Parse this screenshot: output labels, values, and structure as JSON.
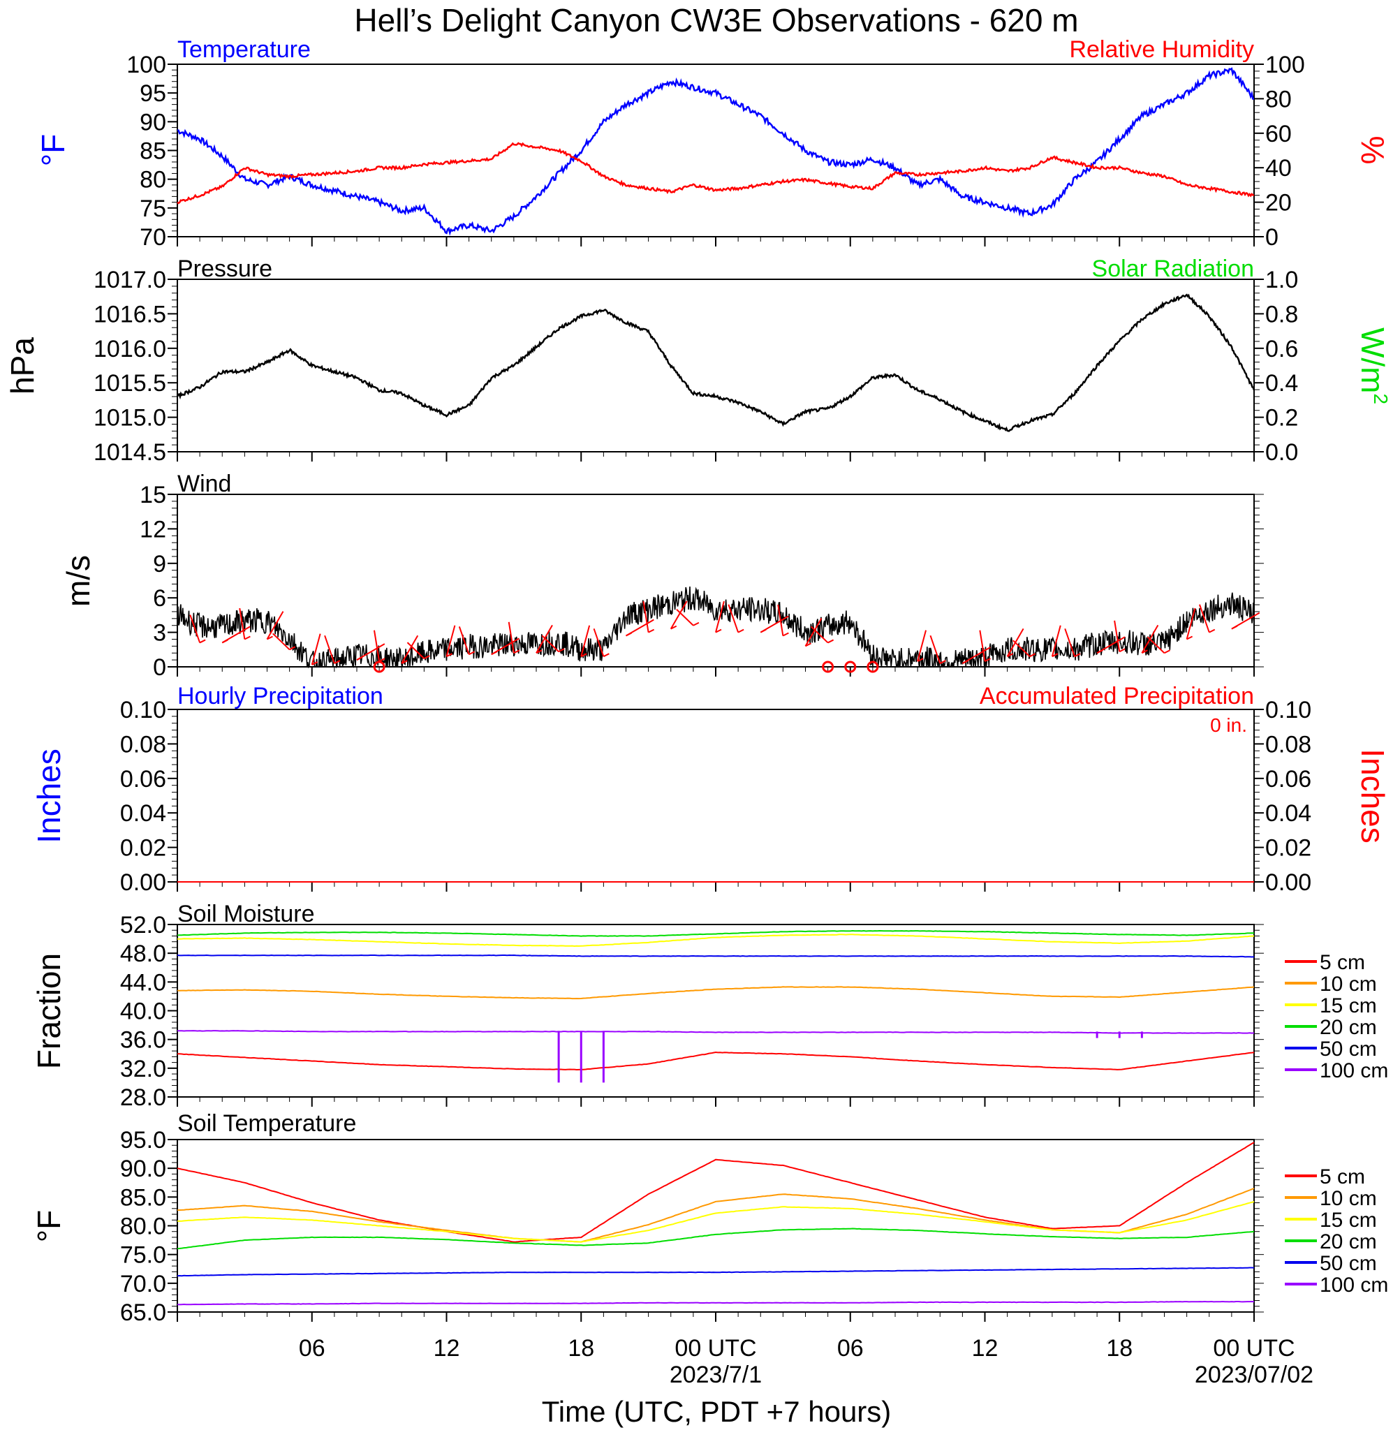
{
  "figure": {
    "title": "Hell’s Delight Canyon CW3E Observations - 620 m",
    "xlabel": "Time (UTC, PDT +7 hours)",
    "x_ticks": [
      "06",
      "12",
      "18",
      "00 UTC",
      "06",
      "12",
      "18",
      "00 UTC"
    ],
    "x_dates": [
      "2023/7/1",
      "2023/07/02"
    ]
  },
  "colors": {
    "blue": "#0000ff",
    "red": "#ff0000",
    "green": "#00dd00",
    "black": "#000000",
    "orange": "#ff9900",
    "yellow": "#ffff00",
    "purple": "#9900ff",
    "soil_blue": "#0000ee"
  },
  "panels": {
    "temp_rh": {
      "title_left": "Temperature",
      "title_right": "Relative Humidity",
      "ylabel_left": "°F",
      "ylabel_right": "%",
      "yticks_left": [
        "100",
        "95",
        "90",
        "85",
        "80",
        "75",
        "70"
      ],
      "yticks_right": [
        "100",
        "80",
        "60",
        "40",
        "20",
        "0"
      ]
    },
    "pressure": {
      "title_left": "Pressure",
      "title_right": "Solar Radiation",
      "ylabel_left": "hPa",
      "ylabel_right": "W/m",
      "ylabel_right_sup": "2",
      "yticks_left": [
        "1017.0",
        "1016.5",
        "1016.0",
        "1015.5",
        "1015.0",
        "1014.5"
      ],
      "yticks_right": [
        "1.0",
        "0.8",
        "0.6",
        "0.4",
        "0.2",
        "0.0"
      ]
    },
    "wind": {
      "title_left": "Wind",
      "ylabel_left": "m/s",
      "yticks_left": [
        "15",
        "12",
        "9",
        "6",
        "3",
        "0"
      ]
    },
    "precip": {
      "title_left": "Hourly Precipitation",
      "title_right": "Accumulated Precipitation",
      "total": "0 in.",
      "ylabel_left": "Inches",
      "ylabel_right": "Inches",
      "yticks_left": [
        "0.10",
        "0.08",
        "0.06",
        "0.04",
        "0.02",
        "0.00"
      ],
      "yticks_right": [
        "0.10",
        "0.08",
        "0.06",
        "0.04",
        "0.02",
        "0.00"
      ]
    },
    "soil_moisture": {
      "title_left": "Soil Moisture",
      "ylabel_left": "Fraction",
      "yticks_left": [
        "52.0",
        "48.0",
        "44.0",
        "40.0",
        "36.0",
        "32.0",
        "28.0"
      ],
      "legend": [
        "5 cm",
        "10 cm",
        "15 cm",
        "20 cm",
        "50 cm",
        "100 cm"
      ]
    },
    "soil_temp": {
      "title_left": "Soil Temperature",
      "ylabel_left": "°F",
      "yticks_left": [
        "95.0",
        "90.0",
        "85.0",
        "80.0",
        "75.0",
        "70.0",
        "65.0"
      ],
      "legend": [
        "5 cm",
        "10 cm",
        "15 cm",
        "20 cm",
        "50 cm",
        "100 cm"
      ]
    }
  },
  "chart_data": [
    {
      "type": "line",
      "title": "Temperature",
      "x_hours": [
        0,
        1,
        2,
        3,
        4,
        5,
        6,
        7,
        8,
        9,
        10,
        11,
        12,
        13,
        14,
        15,
        16,
        17,
        18,
        19,
        20,
        21,
        22,
        23,
        24,
        25,
        26,
        27,
        28,
        29,
        30,
        31,
        32,
        33,
        34,
        35,
        36,
        37,
        38,
        39,
        40,
        41,
        42,
        43,
        44,
        45,
        46,
        47,
        48
      ],
      "ylim": [
        70,
        100
      ],
      "series": [
        {
          "name": "Temperature",
          "color": "blue",
          "axis": "left",
          "values": [
            88.5,
            87,
            84,
            80,
            79,
            80.5,
            79,
            78,
            77,
            76,
            74.5,
            75,
            71,
            72,
            71,
            73.5,
            77,
            81,
            85,
            90,
            93,
            95,
            97,
            96,
            95,
            93,
            91,
            88,
            85,
            83,
            82.5,
            83.5,
            82,
            79,
            80,
            77,
            76,
            75,
            74,
            75.5,
            80,
            83,
            87,
            91,
            93,
            95,
            98,
            99,
            94
          ]
        },
        {
          "name": "Relative Humidity",
          "color": "red",
          "axis": "right",
          "values": [
            20,
            24,
            29,
            40,
            36,
            35,
            36,
            37,
            38,
            40,
            40,
            42,
            43,
            44,
            45,
            54,
            52,
            50,
            44,
            35,
            30,
            28,
            26,
            30,
            27,
            28,
            30,
            32,
            33,
            31,
            29,
            28,
            37,
            36,
            37,
            38,
            40,
            38,
            40,
            46,
            43,
            40,
            40,
            37,
            35,
            30,
            28,
            26,
            24
          ]
        }
      ]
    },
    {
      "type": "line",
      "title": "Pressure",
      "ylim": [
        1014.5,
        1017.0
      ],
      "x_hours": [
        0,
        1,
        2,
        3,
        4,
        5,
        6,
        7,
        8,
        9,
        10,
        11,
        12,
        13,
        14,
        15,
        16,
        17,
        18,
        19,
        20,
        21,
        22,
        23,
        24,
        25,
        26,
        27,
        28,
        29,
        30,
        31,
        32,
        33,
        34,
        35,
        36,
        37,
        38,
        39,
        40,
        41,
        42,
        43,
        44,
        45,
        46,
        47,
        48
      ],
      "series": [
        {
          "name": "Pressure",
          "color": "black",
          "values": [
            1015.3,
            1015.45,
            1015.7,
            1015.7,
            1015.85,
            1016.05,
            1015.8,
            1015.7,
            1015.6,
            1015.4,
            1015.35,
            1015.15,
            1015.0,
            1015.15,
            1015.6,
            1015.8,
            1016.1,
            1016.4,
            1016.6,
            1016.7,
            1016.5,
            1016.35,
            1015.8,
            1015.35,
            1015.3,
            1015.2,
            1015.05,
            1014.85,
            1015.05,
            1015.1,
            1015.3,
            1015.6,
            1015.65,
            1015.4,
            1015.25,
            1015.05,
            1014.9,
            1014.75,
            1014.9,
            1015.0,
            1015.35,
            1015.8,
            1016.2,
            1016.55,
            1016.8,
            1016.95,
            1016.6,
            1016.1,
            1015.4
          ]
        },
        {
          "name": "Solar Radiation",
          "color": "green",
          "values": []
        }
      ]
    },
    {
      "type": "line",
      "title": "Wind",
      "ylim": [
        0,
        15
      ],
      "x_hours": [
        0,
        1,
        2,
        3,
        4,
        5,
        6,
        7,
        8,
        9,
        10,
        11,
        12,
        13,
        14,
        15,
        16,
        17,
        18,
        19,
        20,
        21,
        22,
        23,
        24,
        25,
        26,
        27,
        28,
        29,
        30,
        31,
        32,
        33,
        34,
        35,
        36,
        37,
        38,
        39,
        40,
        41,
        42,
        43,
        44,
        45,
        46,
        47,
        48
      ],
      "series": [
        {
          "name": "Wind speed",
          "color": "black",
          "values": [
            4.5,
            3.5,
            3.5,
            4,
            4,
            2.5,
            0.3,
            0.5,
            1,
            0.8,
            0.5,
            1.2,
            1.5,
            1.8,
            1.8,
            2,
            2,
            2.2,
            1.5,
            1.5,
            4.5,
            5,
            5.5,
            6,
            5,
            5,
            5,
            4.5,
            3,
            3.5,
            4,
            1,
            0.5,
            0.8,
            0.5,
            0.5,
            0.8,
            1.5,
            1.5,
            1.5,
            1.5,
            2,
            2.2,
            2,
            2,
            4,
            5,
            5.5,
            4.5
          ]
        }
      ],
      "barb_hours": [
        1,
        2,
        3,
        4,
        5,
        6,
        7,
        8,
        9,
        10,
        11,
        12,
        13,
        14,
        15,
        16,
        17,
        18,
        19,
        20,
        21,
        22,
        23,
        24,
        25,
        26,
        27,
        28,
        29,
        33,
        34,
        35,
        36,
        37,
        38,
        39,
        40,
        41,
        42,
        43,
        44,
        45,
        46,
        47
      ],
      "calm_hours": [
        9,
        29,
        30,
        31
      ]
    },
    {
      "type": "line",
      "title": "Hourly Precipitation",
      "ylim": [
        0,
        0.1
      ],
      "x_hours": [
        0,
        48
      ],
      "series": [
        {
          "name": "Hourly Precipitation",
          "color": "blue",
          "values": [
            0,
            0
          ]
        },
        {
          "name": "Accumulated Precipitation",
          "color": "red",
          "values": [
            0,
            0
          ]
        }
      ]
    },
    {
      "type": "line",
      "title": "Soil Moisture",
      "ylim": [
        28,
        52
      ],
      "x_hours": [
        0,
        3,
        6,
        9,
        12,
        15,
        18,
        21,
        24,
        27,
        30,
        33,
        36,
        39,
        42,
        45,
        48
      ],
      "series": [
        {
          "name": "5 cm",
          "color": "red",
          "values": [
            34,
            33.5,
            33,
            32.5,
            32.2,
            31.9,
            31.8,
            32.6,
            34.2,
            34.0,
            33.6,
            33.0,
            32.5,
            32.1,
            31.8,
            33.0,
            34.2
          ]
        },
        {
          "name": "10 cm",
          "color": "orange",
          "values": [
            42.8,
            42.9,
            42.7,
            42.3,
            42.0,
            41.8,
            41.7,
            42.4,
            43.0,
            43.3,
            43.3,
            43.0,
            42.5,
            42.0,
            41.9,
            42.6,
            43.3
          ]
        },
        {
          "name": "15 cm",
          "color": "yellow",
          "values": [
            50.0,
            50.1,
            49.9,
            49.6,
            49.3,
            49.1,
            49.0,
            49.5,
            50.2,
            50.5,
            50.6,
            50.4,
            50.0,
            49.6,
            49.4,
            49.7,
            50.4
          ]
        },
        {
          "name": "20 cm",
          "color": "green",
          "values": [
            50.5,
            50.8,
            50.9,
            50.9,
            50.8,
            50.6,
            50.4,
            50.4,
            50.7,
            51.0,
            51.1,
            51.1,
            51.0,
            50.8,
            50.6,
            50.5,
            50.8
          ]
        },
        {
          "name": "50 cm",
          "color": "soil_blue",
          "values": [
            47.7,
            47.7,
            47.7,
            47.7,
            47.7,
            47.7,
            47.6,
            47.6,
            47.6,
            47.6,
            47.6,
            47.6,
            47.6,
            47.6,
            47.6,
            47.6,
            47.5
          ]
        },
        {
          "name": "100 cm",
          "color": "purple",
          "values": [
            37.2,
            37.2,
            37.1,
            37.1,
            37.1,
            37.1,
            37.1,
            37.1,
            37.0,
            37.0,
            37.0,
            37.0,
            37.0,
            37.0,
            36.9,
            36.9,
            36.9
          ]
        }
      ],
      "spikes_100cm": [
        {
          "hour": 17,
          "to": 30
        },
        {
          "hour": 18,
          "to": 30
        },
        {
          "hour": 19,
          "to": 30
        },
        {
          "hour": 41,
          "to": 36.2
        },
        {
          "hour": 42,
          "to": 36.2
        },
        {
          "hour": 43,
          "to": 36.2
        }
      ]
    },
    {
      "type": "line",
      "title": "Soil Temperature",
      "ylim": [
        65,
        95
      ],
      "x_hours": [
        0,
        3,
        6,
        9,
        12,
        15,
        18,
        21,
        24,
        27,
        30,
        33,
        36,
        39,
        42,
        45,
        48
      ],
      "series": [
        {
          "name": "5 cm",
          "color": "red",
          "values": [
            90,
            87.5,
            84,
            81,
            79,
            77.2,
            78,
            85.5,
            91.5,
            90.5,
            87.5,
            84.5,
            81.5,
            79.5,
            80,
            87.5,
            94.5
          ]
        },
        {
          "name": "10 cm",
          "color": "orange",
          "values": [
            82.7,
            83.5,
            82.5,
            80.7,
            79.2,
            77.8,
            77.2,
            80.2,
            84.2,
            85.5,
            84.7,
            83,
            81,
            79.3,
            78.8,
            82,
            86.5
          ]
        },
        {
          "name": "15 cm",
          "color": "yellow",
          "values": [
            80.8,
            81.5,
            81,
            80,
            79,
            77.8,
            77.2,
            79.2,
            82.2,
            83.3,
            83,
            82,
            80.7,
            79.3,
            78.8,
            81,
            84.2
          ]
        },
        {
          "name": "20 cm",
          "color": "green",
          "values": [
            76,
            77.5,
            78,
            78,
            77.6,
            77,
            76.6,
            77,
            78.5,
            79.3,
            79.5,
            79.2,
            78.6,
            78.1,
            77.8,
            78,
            79
          ]
        },
        {
          "name": "50 cm",
          "color": "soil_blue",
          "values": [
            71.3,
            71.5,
            71.6,
            71.7,
            71.8,
            71.9,
            71.9,
            71.9,
            71.9,
            72.0,
            72.1,
            72.2,
            72.3,
            72.4,
            72.5,
            72.6,
            72.7
          ]
        },
        {
          "name": "100 cm",
          "color": "purple",
          "values": [
            66.3,
            66.4,
            66.4,
            66.5,
            66.5,
            66.5,
            66.5,
            66.6,
            66.6,
            66.6,
            66.6,
            66.7,
            66.7,
            66.7,
            66.7,
            66.8,
            66.8
          ]
        }
      ]
    }
  ]
}
